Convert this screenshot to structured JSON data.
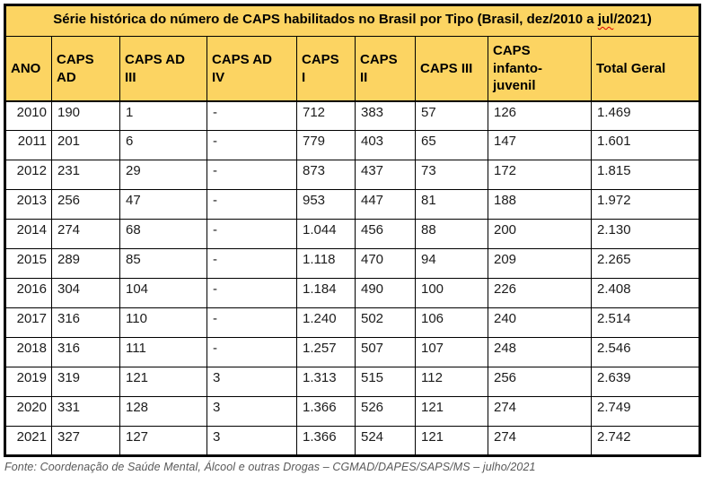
{
  "title": {
    "pre": "Série histórica do número de CAPS habilitados no Brasil por Tipo (Brasil, dez/2010 a ",
    "flagged_word": "jul",
    "post": "/2021)"
  },
  "table": {
    "headers": [
      "ANO",
      "CAPS AD",
      "CAPS AD III",
      "CAPS AD IV",
      "CAPS I",
      "CAPS II",
      "CAPS III",
      "CAPS infanto-juvenil",
      "Total Geral"
    ],
    "rows": [
      [
        "2010",
        "190",
        "1",
        "-",
        "712",
        "383",
        "57",
        "126",
        "1.469"
      ],
      [
        "2011",
        "201",
        "6",
        "-",
        "779",
        "403",
        "65",
        "147",
        "1.601"
      ],
      [
        "2012",
        "231",
        "29",
        "-",
        "873",
        "437",
        "73",
        "172",
        "1.815"
      ],
      [
        "2013",
        "256",
        "47",
        "-",
        "953",
        "447",
        "81",
        "188",
        "1.972"
      ],
      [
        "2014",
        "274",
        "68",
        "-",
        "1.044",
        "456",
        "88",
        "200",
        "2.130"
      ],
      [
        "2015",
        "289",
        "85",
        "-",
        "1.118",
        "470",
        "94",
        "209",
        "2.265"
      ],
      [
        "2016",
        "304",
        "104",
        "-",
        "1.184",
        "490",
        "100",
        "226",
        "2.408"
      ],
      [
        "2017",
        "316",
        "110",
        "-",
        "1.240",
        "502",
        "106",
        "240",
        "2.514"
      ],
      [
        "2018",
        "316",
        "111",
        "-",
        "1.257",
        "507",
        "107",
        "248",
        "2.546"
      ],
      [
        "2019",
        "319",
        "121",
        "3",
        "1.313",
        "515",
        "112",
        "256",
        "2.639"
      ],
      [
        "2020",
        "331",
        "128",
        "3",
        "1.366",
        "526",
        "121",
        "274",
        "2.749"
      ],
      [
        "2021",
        "327",
        "127",
        "3",
        "1.366",
        "524",
        "121",
        "274",
        "2.742"
      ]
    ]
  },
  "footer": {
    "text": "Fonte: Coordenação de Saúde Mental, Álcool e outras Drogas – CGMAD/DAPES/SAPS/MS – julho/2021"
  },
  "colors": {
    "header_bg": "#fcd462",
    "border": "#000000",
    "spellcheck_underline": "#e00000",
    "footer_text": "#595959"
  }
}
